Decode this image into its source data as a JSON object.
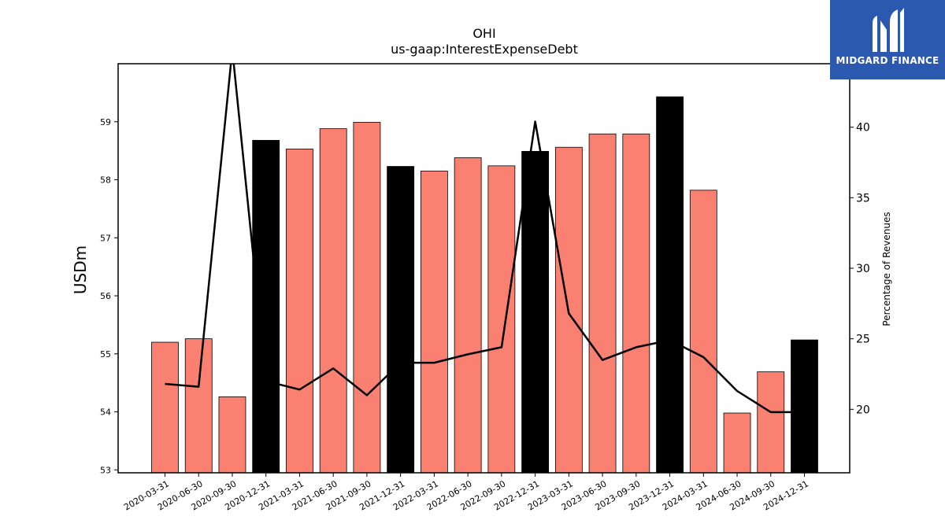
{
  "chart_data": {
    "type": "bar+line",
    "title": "OHI",
    "subtitle": "us-gaap:InterestExpenseDebt",
    "ylabel": "USDm",
    "y2label": "Percentage of Revenues",
    "ylim": [
      52.95,
      60.0
    ],
    "y2lim": [
      15.5,
      44.5
    ],
    "yticks": [
      53,
      54,
      55,
      56,
      57,
      58,
      59
    ],
    "y2ticks": [
      20,
      25,
      30,
      35,
      40
    ],
    "categories": [
      "2020-03-31",
      "2020-06-30",
      "2020-09-30",
      "2020-12-31",
      "2021-03-31",
      "2021-06-30",
      "2021-09-30",
      "2021-12-31",
      "2022-03-31",
      "2022-06-30",
      "2022-09-30",
      "2022-12-31",
      "2023-03-31",
      "2023-06-30",
      "2023-09-30",
      "2023-12-31",
      "2024-03-31",
      "2024-06-30",
      "2024-09-30",
      "2024-12-31"
    ],
    "series": [
      {
        "kind": "bar",
        "values": [
          55.2,
          55.26,
          54.26,
          58.68,
          58.53,
          58.88,
          58.99,
          58.23,
          58.15,
          58.38,
          58.24,
          58.49,
          58.56,
          58.79,
          58.79,
          59.43,
          57.82,
          53.98,
          54.69,
          55.24
        ],
        "colors": [
          "#fa8072",
          "#fa8072",
          "#fa8072",
          "#000000",
          "#fa8072",
          "#fa8072",
          "#fa8072",
          "#000000",
          "#fa8072",
          "#fa8072",
          "#fa8072",
          "#000000",
          "#fa8072",
          "#fa8072",
          "#fa8072",
          "#000000",
          "#fa8072",
          "#fa8072",
          "#fa8072",
          "#000000"
        ]
      },
      {
        "kind": "line",
        "axis": "right",
        "color": "#000000",
        "values": [
          21.8,
          21.6,
          45.5,
          22.0,
          21.4,
          22.9,
          21.0,
          23.3,
          23.3,
          23.9,
          24.4,
          40.4,
          26.8,
          23.5,
          24.4,
          24.9,
          23.7,
          21.3,
          19.8,
          19.8
        ]
      }
    ],
    "grid": false
  },
  "logo": {
    "text": "MIDGARD FINANCE",
    "bg": "#2b59b0"
  }
}
